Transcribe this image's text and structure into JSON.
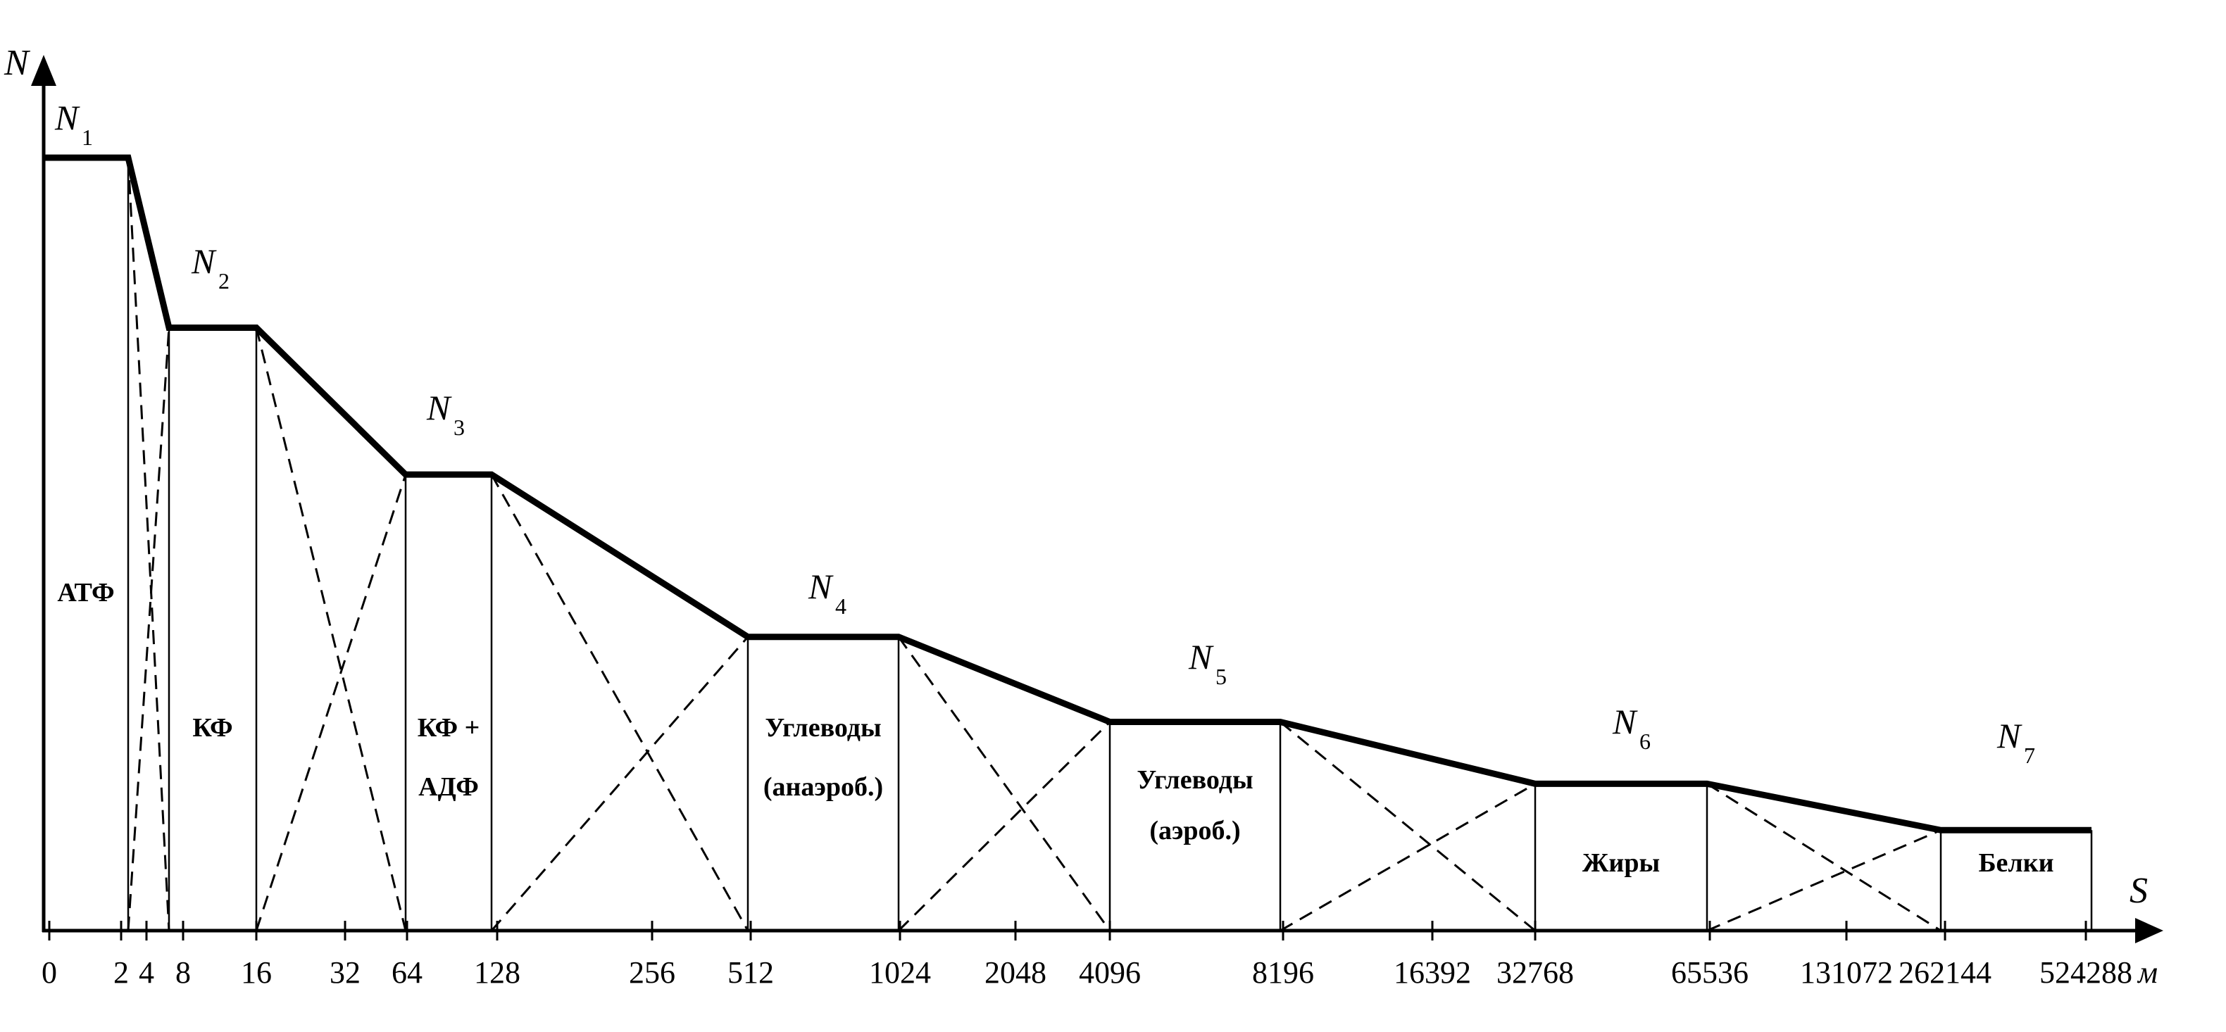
{
  "chart_data": {
    "type": "line",
    "x_axis_label": "S",
    "x_unit": "м",
    "y_axis_label": "N",
    "x_ticks": [
      "0",
      "2",
      "4",
      "8",
      "16",
      "32",
      "64",
      "128",
      "256",
      "512",
      "1024",
      "2048",
      "4096",
      "8196",
      "16392",
      "32768",
      "65536",
      "131072",
      "262144",
      "524288"
    ],
    "levels": [
      {
        "name": "N",
        "sub": "1",
        "x_start": "0",
        "x_end": "2",
        "relative_level": 1.0
      },
      {
        "name": "N",
        "sub": "2",
        "x_start": "8",
        "x_end": "16",
        "relative_level": 0.78
      },
      {
        "name": "N",
        "sub": "3",
        "x_start": "64",
        "x_end": "128",
        "relative_level": 0.59
      },
      {
        "name": "N",
        "sub": "4",
        "x_start": "512",
        "x_end": "1024",
        "relative_level": 0.38
      },
      {
        "name": "N",
        "sub": "5",
        "x_start": "4096",
        "x_end": "8196",
        "relative_level": 0.27
      },
      {
        "name": "N",
        "sub": "6",
        "x_start": "32768",
        "x_end": "65536",
        "relative_level": 0.19
      },
      {
        "name": "N",
        "sub": "7",
        "x_start": "262144",
        "x_end": "524288",
        "relative_level": 0.13
      }
    ],
    "zones": [
      {
        "lines": [
          "АТФ"
        ]
      },
      {
        "lines": [
          "КФ"
        ]
      },
      {
        "lines": [
          "КФ +",
          "АДФ"
        ]
      },
      {
        "lines": [
          "Углеводы",
          "(анаэроб.)"
        ]
      },
      {
        "lines": [
          "Углеводы",
          "(аэроб.)"
        ]
      },
      {
        "lines": [
          "Жиры"
        ]
      },
      {
        "lines": [
          "Белки"
        ]
      }
    ]
  }
}
